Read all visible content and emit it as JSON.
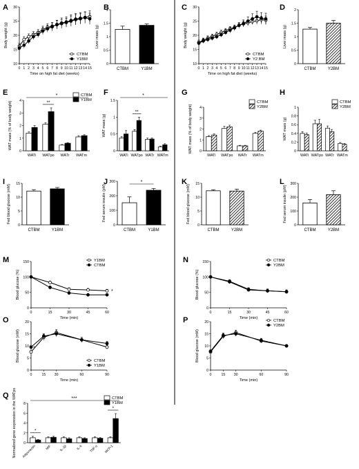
{
  "colors": {
    "black": "#000000",
    "white": "#ffffff",
    "hatch": "#555555"
  },
  "chart_data": [
    {
      "id": "A",
      "panel_label": "A",
      "type": "line",
      "xlabel": "Time on high fat diet (weeks)",
      "ylabel": "Body weight (g)",
      "xlim": [
        0,
        15
      ],
      "ylim": [
        10,
        30
      ],
      "yticks": [
        10,
        15,
        20,
        25,
        30
      ],
      "xticks": [
        0,
        1,
        2,
        3,
        4,
        5,
        6,
        7,
        8,
        9,
        10,
        11,
        12,
        13,
        14,
        15
      ],
      "legend": "bottom-right",
      "series": [
        {
          "name": "CTBM",
          "marker": "open-circle",
          "x": [
            0,
            1,
            2,
            3,
            4,
            5,
            6,
            7,
            8,
            9,
            10,
            11,
            12,
            13,
            14,
            15
          ],
          "y": [
            16.2,
            18.5,
            19.5,
            20.3,
            21.0,
            22.0,
            22.8,
            23.2,
            23.7,
            24.1,
            24.5,
            25.0,
            25.5,
            25.8,
            26.3,
            26.6
          ],
          "err": [
            1,
            1,
            1,
            1,
            1,
            1.2,
            1.2,
            1.2,
            1.5,
            1.5,
            1.5,
            1.8,
            1.8,
            1.8,
            2,
            2
          ]
        },
        {
          "name": "Y1BM",
          "marker": "filled-circle",
          "x": [
            0,
            1,
            2,
            3,
            4,
            5,
            6,
            7,
            8,
            9,
            10,
            11,
            12,
            13,
            14,
            15
          ],
          "y": [
            15.5,
            16.5,
            18.0,
            19.5,
            20.3,
            21.5,
            22.3,
            23.0,
            23.8,
            24.3,
            24.7,
            25.2,
            25.7,
            26.0,
            26.2,
            25.8
          ],
          "err": [
            1,
            1,
            1,
            1,
            1,
            1.2,
            1.2,
            1.5,
            1.5,
            1.8,
            1.8,
            2,
            2,
            2,
            2,
            2
          ]
        }
      ]
    },
    {
      "id": "B",
      "panel_label": "B",
      "type": "bar",
      "xlabel": "",
      "ylabel": "Liver mass (g)",
      "ylim": [
        0,
        2
      ],
      "yticks": [
        0,
        0.5,
        1.0,
        1.5,
        2.0
      ],
      "categories": [
        "CTBM",
        "Y1BM"
      ],
      "values": [
        1.27,
        1.42
      ],
      "err": [
        0.12,
        0.05
      ],
      "fills": [
        "white",
        "black"
      ]
    },
    {
      "id": "C",
      "panel_label": "C",
      "type": "line",
      "xlabel": "Time on high fat diet (weeks)",
      "ylabel": "Body weight (g)",
      "xlim": [
        0,
        15
      ],
      "ylim": [
        10,
        30
      ],
      "yticks": [
        10,
        15,
        20,
        25,
        30
      ],
      "xticks": [
        0,
        1,
        2,
        3,
        4,
        5,
        6,
        7,
        8,
        9,
        10,
        11,
        12,
        13,
        14,
        15
      ],
      "legend": "bottom-right",
      "series": [
        {
          "name": "CTBM",
          "marker": "open-circle",
          "x": [
            0,
            1,
            2,
            3,
            4,
            5,
            6,
            7,
            8,
            9,
            10,
            11,
            12,
            13,
            14,
            15
          ],
          "y": [
            17.5,
            18.2,
            19.0,
            19.6,
            20.3,
            21.0,
            21.6,
            22.3,
            22.8,
            23.5,
            24.0,
            24.4,
            24.8,
            25.1,
            25.5,
            25.3
          ],
          "err": [
            0.8,
            0.8,
            0.8,
            0.8,
            0.8,
            0.8,
            0.8,
            0.8,
            0.8,
            0.8,
            1,
            1,
            1,
            1.2,
            1.2,
            1.5
          ]
        },
        {
          "name": "Y2 BM",
          "marker": "filled-circle",
          "x": [
            0,
            1,
            2,
            3,
            4,
            5,
            6,
            7,
            8,
            9,
            10,
            11,
            12,
            13,
            14,
            15
          ],
          "y": [
            17.2,
            18.0,
            18.5,
            19.0,
            19.5,
            20.2,
            21.0,
            21.8,
            22.6,
            23.5,
            24.2,
            25.0,
            25.8,
            26.5,
            26.0,
            25.8
          ],
          "err": [
            0.8,
            0.8,
            0.8,
            0.8,
            0.8,
            0.8,
            0.8,
            1,
            1,
            1,
            1.2,
            1.5,
            1.8,
            2,
            2,
            2
          ]
        }
      ]
    },
    {
      "id": "D",
      "panel_label": "D",
      "type": "bar",
      "xlabel": "",
      "ylabel": "Liver mass (g)",
      "ylim": [
        0,
        2
      ],
      "yticks": [
        0,
        0.5,
        1.0,
        1.5,
        2.0
      ],
      "categories": [
        "CTBM",
        "Y2BM"
      ],
      "values": [
        1.28,
        1.5
      ],
      "err": [
        0.06,
        0.1
      ],
      "fills": [
        "white",
        "hatch"
      ]
    },
    {
      "id": "E",
      "panel_label": "E",
      "type": "grouped-bar",
      "ylabel": "WAT mass (% of body weight)",
      "ylim": [
        0,
        4
      ],
      "yticks": [
        0,
        1,
        2,
        3,
        4
      ],
      "categories": [
        "WATi",
        "WATpo",
        "WATr",
        "WATm"
      ],
      "legend": "top-right",
      "series": [
        {
          "name": "CTBM",
          "fill": "white",
          "values": [
            1.4,
            2.1,
            0.45,
            1.1
          ],
          "err": [
            0.1,
            0.12,
            0.05,
            0.1
          ]
        },
        {
          "name": "Y1BM",
          "fill": "black",
          "values": [
            1.85,
            3.1,
            0.6,
            1.2
          ],
          "err": [
            0.15,
            0.3,
            0.05,
            0.07
          ]
        }
      ],
      "annotations": [
        {
          "text": "**",
          "group": 1
        },
        {
          "text": "*",
          "position": "top"
        }
      ]
    },
    {
      "id": "F",
      "panel_label": "F",
      "type": "grouped-bar",
      "ylabel": "WAT mass (g)",
      "ylim": [
        0,
        1.5
      ],
      "yticks": [
        0,
        0.5,
        1.0,
        1.5
      ],
      "categories": [
        "WATi",
        "WATpo",
        "WATr",
        "WATm"
      ],
      "series": [
        {
          "name": "CTBM",
          "fill": "white",
          "values": [
            0.38,
            0.58,
            0.34,
            0.12
          ],
          "err": [
            0.04,
            0.05,
            0.04,
            0.02
          ]
        },
        {
          "name": "Y1BM",
          "fill": "black",
          "values": [
            0.5,
            0.9,
            0.35,
            0.18
          ],
          "err": [
            0.1,
            0.1,
            0.03,
            0.03
          ]
        }
      ],
      "annotations": [
        {
          "text": "**",
          "group": 1
        },
        {
          "text": "*",
          "position": "top"
        }
      ]
    },
    {
      "id": "G",
      "panel_label": "G",
      "type": "grouped-bar",
      "ylabel": "WAT mass (% of body weight)",
      "ylim": [
        0,
        4
      ],
      "yticks": [
        0,
        1,
        2,
        3,
        4
      ],
      "categories": [
        "WATi",
        "WATpo",
        "WATr",
        "WATm"
      ],
      "legend": "top-right",
      "series": [
        {
          "name": "CTBM",
          "fill": "white",
          "values": [
            1.3,
            2.05,
            0.45,
            1.6
          ],
          "err": [
            0.1,
            0.2,
            0.05,
            0.1
          ]
        },
        {
          "name": "Y2BM",
          "fill": "hatch",
          "values": [
            1.45,
            2.2,
            0.45,
            1.8
          ],
          "err": [
            0.1,
            0.15,
            0.05,
            0.1
          ]
        }
      ]
    },
    {
      "id": "H",
      "panel_label": "H",
      "type": "grouped-bar",
      "ylabel": "WAT mass (g)",
      "ylim": [
        0,
        1.0
      ],
      "yticks": [
        0,
        0.2,
        0.4,
        0.6,
        0.8,
        1.0
      ],
      "categories": [
        "WATi",
        "WATpo",
        "WATr",
        "WATm"
      ],
      "legend": "top-right",
      "series": [
        {
          "name": "CTBM",
          "fill": "white",
          "values": [
            0.4,
            0.62,
            0.52,
            0.17
          ],
          "err": [
            0.04,
            0.08,
            0.05,
            0.02
          ]
        },
        {
          "name": "Y2BM",
          "fill": "hatch",
          "values": [
            0.37,
            0.62,
            0.44,
            0.15
          ],
          "err": [
            0.04,
            0.1,
            0.05,
            0.02
          ]
        }
      ]
    },
    {
      "id": "I",
      "panel_label": "I",
      "type": "bar",
      "ylabel": "Fed blood glucose (mM)",
      "ylim": [
        0,
        15
      ],
      "yticks": [
        0,
        5,
        10,
        15
      ],
      "categories": [
        "CTBM",
        "Y1BM"
      ],
      "values": [
        12.2,
        13.0
      ],
      "err": [
        0.5,
        0.5
      ],
      "fills": [
        "white",
        "black"
      ]
    },
    {
      "id": "J",
      "panel_label": "J",
      "type": "bar",
      "ylabel": "Fed serum insulin (pM)",
      "ylim": [
        0,
        300
      ],
      "yticks": [
        0,
        100,
        200,
        300
      ],
      "categories": [
        "CTBM",
        "Y1BM"
      ],
      "values": [
        152,
        238
      ],
      "err": [
        40,
        12
      ],
      "fills": [
        "white",
        "black"
      ],
      "annotations": [
        {
          "text": "*",
          "position": "top"
        }
      ]
    },
    {
      "id": "K",
      "panel_label": "K",
      "type": "bar",
      "ylabel": "Fed blood glucose (mM)",
      "ylim": [
        0,
        15
      ],
      "yticks": [
        0,
        5,
        10,
        15
      ],
      "categories": [
        "CTBM",
        "Y2BM"
      ],
      "values": [
        12.3,
        12.2
      ],
      "err": [
        0.4,
        0.7
      ],
      "fills": [
        "white",
        "hatch"
      ]
    },
    {
      "id": "L",
      "panel_label": "L",
      "type": "bar",
      "ylabel": "Fed serum insulin (pM)",
      "ylim": [
        0,
        300
      ],
      "yticks": [
        0,
        100,
        200,
        300
      ],
      "categories": [
        "CTBM",
        "Y2BM"
      ],
      "values": [
        158,
        218
      ],
      "err": [
        25,
        28
      ],
      "fills": [
        "white",
        "hatch"
      ]
    },
    {
      "id": "M",
      "panel_label": "M",
      "type": "line",
      "xlabel": "Time (min)",
      "ylabel": "Blood glucose (%)",
      "xlim": [
        0,
        60
      ],
      "ylim": [
        0,
        150
      ],
      "yticks": [
        0,
        50,
        100,
        150
      ],
      "xticks": [
        0,
        15,
        30,
        45,
        60
      ],
      "legend": "top-right",
      "series": [
        {
          "name": "Y1BM",
          "marker": "open-circle",
          "x": [
            0,
            15,
            30,
            45,
            60
          ],
          "y": [
            100,
            82,
            60,
            58,
            55
          ],
          "err": [
            3,
            5,
            5,
            5,
            5
          ]
        },
        {
          "name": "CTBM",
          "marker": "filled-circle",
          "x": [
            0,
            15,
            30,
            45,
            60
          ],
          "y": [
            100,
            66,
            48,
            42,
            42
          ],
          "err": [
            3,
            5,
            4,
            4,
            4
          ]
        }
      ],
      "annotations": [
        {
          "text": "*",
          "position": "right"
        }
      ]
    },
    {
      "id": "N",
      "panel_label": "N",
      "type": "line",
      "xlabel": "Time (min)",
      "ylabel": "Blood glucose (%)",
      "xlim": [
        0,
        60
      ],
      "ylim": [
        0,
        150
      ],
      "yticks": [
        0,
        50,
        100,
        150
      ],
      "xticks": [
        0,
        15,
        30,
        45,
        60
      ],
      "legend": "top-right",
      "series": [
        {
          "name": "CTBM",
          "marker": "open-circle",
          "x": [
            0,
            15,
            30,
            45,
            60
          ],
          "y": [
            100,
            86,
            60,
            55,
            52
          ],
          "err": [
            4,
            5,
            5,
            6,
            6
          ]
        },
        {
          "name": "Y2BM",
          "marker": "filled-circle",
          "x": [
            0,
            15,
            30,
            45,
            60
          ],
          "y": [
            100,
            84,
            58,
            55,
            52
          ],
          "err": [
            4,
            5,
            5,
            6,
            6
          ]
        }
      ]
    },
    {
      "id": "O",
      "panel_label": "O",
      "type": "line",
      "xlabel": "Time (min)",
      "ylabel": "Blood glucose (mM)",
      "xlim": [
        0,
        90
      ],
      "ylim": [
        0,
        20
      ],
      "yticks": [
        0,
        5,
        10,
        15,
        20
      ],
      "xticks": [
        0,
        15,
        30,
        60,
        90
      ],
      "legend": "bottom-right",
      "series": [
        {
          "name": "CTBM",
          "marker": "open-circle",
          "x": [
            0,
            15,
            30,
            60,
            90
          ],
          "y": [
            7.5,
            13.5,
            15.5,
            12.5,
            9.5
          ],
          "err": [
            0.5,
            1.2,
            1.2,
            1,
            0.8
          ]
        },
        {
          "name": "Y1BM",
          "marker": "filled-circle",
          "x": [
            0,
            15,
            30,
            60,
            90
          ],
          "y": [
            9.5,
            14.0,
            15.0,
            12.5,
            11.0
          ],
          "err": [
            0.5,
            1,
            1.2,
            1,
            0.8
          ]
        }
      ],
      "annotations": [
        {
          "text": "*",
          "position": "left"
        }
      ]
    },
    {
      "id": "P",
      "panel_label": "P",
      "type": "line",
      "xlabel": "Time (min)",
      "ylabel": "Blood glucose (mM)",
      "xlim": [
        0,
        90
      ],
      "ylim": [
        0,
        20
      ],
      "yticks": [
        0,
        5,
        10,
        15,
        20
      ],
      "xticks": [
        0,
        15,
        30,
        60,
        90
      ],
      "legend": "top-right",
      "series": [
        {
          "name": "CTBM",
          "marker": "open-circle",
          "x": [
            0,
            15,
            30,
            60,
            90
          ],
          "y": [
            7.5,
            14.0,
            15.5,
            12.0,
            10.0
          ],
          "err": [
            0.5,
            1,
            1,
            0.8,
            0.5
          ]
        },
        {
          "name": "Y2BM",
          "marker": "filled-circle",
          "x": [
            0,
            15,
            30,
            60,
            90
          ],
          "y": [
            7.8,
            14.3,
            15.0,
            12.3,
            10.0
          ],
          "err": [
            0.5,
            1,
            1,
            0.8,
            0.5
          ]
        }
      ]
    },
    {
      "id": "Q",
      "panel_label": "Q",
      "type": "grouped-bar",
      "ylabel": "Normalized gene expression in the WATpo",
      "ylim": [
        0,
        8
      ],
      "yticks": [
        0,
        2,
        4,
        6,
        8
      ],
      "categories": [
        "Adiponectin",
        "MIF",
        "IL-1β",
        "IL-6",
        "TNF-α",
        "MCP-1"
      ],
      "legend": "top-right",
      "series": [
        {
          "name": "CTBM",
          "fill": "white",
          "values": [
            1.0,
            1.0,
            1.0,
            1.0,
            1.0,
            1.0
          ],
          "err": [
            0.3,
            0.2,
            0.2,
            0.2,
            0.2,
            0.2
          ]
        },
        {
          "name": "Y1BM",
          "fill": "black",
          "values": [
            0.55,
            1.1,
            0.8,
            0.85,
            0.9,
            4.9
          ],
          "err": [
            0.1,
            0.2,
            0.2,
            0.15,
            0.15,
            1.0
          ]
        }
      ],
      "annotations": [
        {
          "text": "*",
          "group": 0
        },
        {
          "text": "*",
          "group": 5
        },
        {
          "text": "***",
          "position": "top"
        }
      ]
    }
  ]
}
